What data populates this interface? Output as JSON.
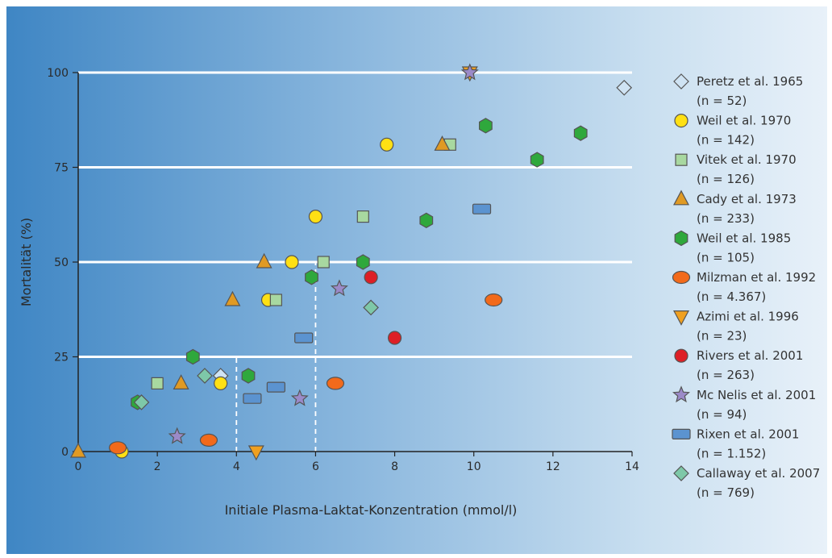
{
  "chart_data": {
    "type": "scatter",
    "title": "",
    "xlabel": "Initiale Plasma-Laktat-Konzentration (mmol/l)",
    "ylabel": "Mortalität (%)",
    "xlim": [
      0,
      14
    ],
    "ylim": [
      0,
      100
    ],
    "x_ticks": [
      "0",
      "2",
      "4",
      "6",
      "8",
      "10",
      "12",
      "14"
    ],
    "y_ticks": [
      "0",
      "25",
      "50",
      "75",
      "100"
    ],
    "grid": "horizontal white lines at 25, 50, 75, 100",
    "legend_position": "right",
    "reference_lines": [
      {
        "x": 4,
        "y_to": 25,
        "style": "dashed"
      },
      {
        "x": 6,
        "y_to": 50,
        "style": "dashed"
      }
    ],
    "series": [
      {
        "name": "Peretz et al. 1965",
        "n_label": "(n = 52)",
        "marker": "diamond",
        "color": "#cfe3f3",
        "points": [
          [
            3.6,
            20
          ],
          [
            13.8,
            96
          ]
        ]
      },
      {
        "name": "Weil et al. 1970",
        "n_label": "(n = 142)",
        "marker": "circle",
        "color": "#ffe014",
        "points": [
          [
            1.1,
            0
          ],
          [
            3.6,
            18
          ],
          [
            4.8,
            40
          ],
          [
            5.4,
            50
          ],
          [
            6.0,
            62
          ],
          [
            7.8,
            81
          ]
        ]
      },
      {
        "name": "Vitek et al. 1970",
        "n_label": "(n = 126)",
        "marker": "square",
        "color": "#a8d8a0",
        "points": [
          [
            2.0,
            18
          ],
          [
            5.0,
            40
          ],
          [
            6.2,
            50
          ],
          [
            7.2,
            62
          ],
          [
            9.4,
            81
          ]
        ]
      },
      {
        "name": "Cady et al. 1973",
        "n_label": "(n = 233)",
        "marker": "triangle-up",
        "color": "#e09a24",
        "points": [
          [
            0.0,
            0
          ],
          [
            2.6,
            18
          ],
          [
            3.9,
            40
          ],
          [
            4.7,
            50
          ],
          [
            9.2,
            81
          ]
        ]
      },
      {
        "name": "Weil et al. 1985",
        "n_label": "(n = 105)",
        "marker": "hexagon",
        "color": "#2fa83c",
        "points": [
          [
            1.5,
            13
          ],
          [
            2.9,
            25
          ],
          [
            4.3,
            20
          ],
          [
            5.9,
            46
          ],
          [
            7.2,
            50
          ],
          [
            8.8,
            61
          ],
          [
            10.3,
            86
          ],
          [
            11.6,
            77
          ],
          [
            12.7,
            84
          ]
        ]
      },
      {
        "name": "Milzman et al. 1992",
        "n_label": "(n = 4.367)",
        "marker": "ellipse",
        "color": "#f26a1b",
        "points": [
          [
            1.0,
            1
          ],
          [
            3.3,
            3
          ],
          [
            6.5,
            18
          ],
          [
            10.5,
            40
          ]
        ]
      },
      {
        "name": "Azimi et al. 1996",
        "n_label": "(n = 23)",
        "marker": "triangle-down",
        "color": "#f0a020",
        "points": [
          [
            4.5,
            0
          ],
          [
            9.9,
            100
          ]
        ]
      },
      {
        "name": "Rivers et al. 2001",
        "n_label": "(n = 263)",
        "marker": "circle",
        "color": "#dd1f26",
        "points": [
          [
            7.4,
            46
          ],
          [
            8.0,
            30
          ]
        ]
      },
      {
        "name": "Mc Nelis et al. 2001",
        "n_label": "(n = 94)",
        "marker": "star",
        "color": "#9b8ac8",
        "points": [
          [
            2.5,
            4
          ],
          [
            5.6,
            14
          ],
          [
            6.6,
            43
          ],
          [
            9.9,
            100
          ]
        ]
      },
      {
        "name": "Rixen et al. 2001",
        "n_label": "(n = 1.152)",
        "marker": "rect",
        "color": "#5b93d0",
        "points": [
          [
            4.4,
            14
          ],
          [
            5.0,
            17
          ],
          [
            5.7,
            30
          ],
          [
            10.2,
            64
          ]
        ]
      },
      {
        "name": "Callaway et al. 2007",
        "n_label": "(n = 769)",
        "marker": "diamond",
        "color": "#7ec8a8",
        "points": [
          [
            1.6,
            13
          ],
          [
            3.2,
            20
          ],
          [
            7.4,
            38
          ]
        ]
      }
    ]
  }
}
